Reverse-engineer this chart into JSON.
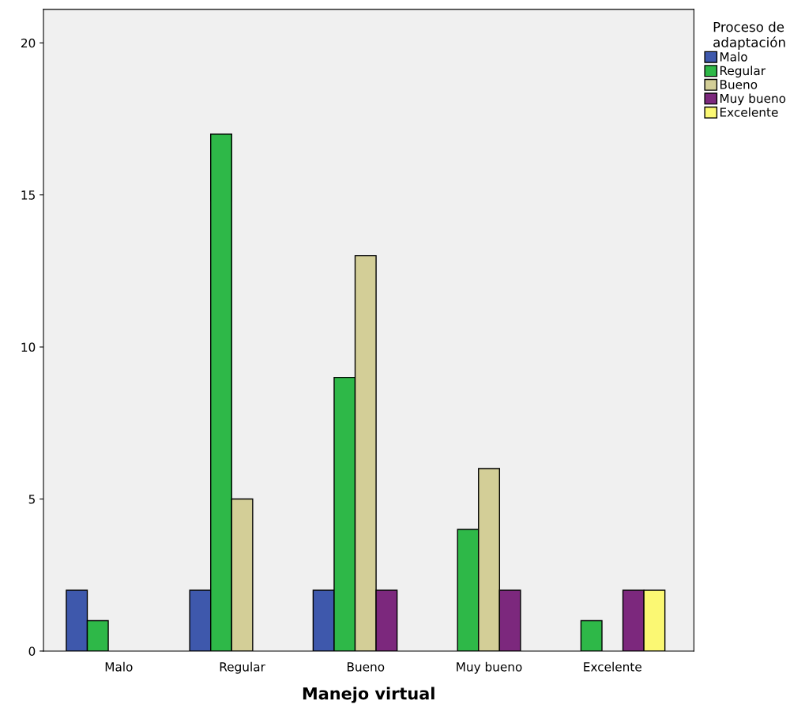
{
  "chart_data": {
    "type": "bar",
    "xlabel": "Manejo virtual",
    "legend_title": "Proceso de\nadaptación",
    "categories": [
      "Malo",
      "Regular",
      "Bueno",
      "Muy bueno",
      "Excelente"
    ],
    "series": [
      {
        "name": "Malo",
        "color": "#3e58ac",
        "values": [
          2,
          2,
          2,
          null,
          null
        ]
      },
      {
        "name": "Regular",
        "color": "#2eb848",
        "values": [
          1,
          17,
          9,
          4,
          1
        ]
      },
      {
        "name": "Bueno",
        "color": "#d3ce97",
        "values": [
          null,
          5,
          13,
          6,
          null
        ]
      },
      {
        "name": "Muy bueno",
        "color": "#7c287d",
        "values": [
          null,
          null,
          2,
          2,
          2
        ]
      },
      {
        "name": "Excelente",
        "color": "#fbf873",
        "values": [
          null,
          null,
          null,
          null,
          2
        ]
      }
    ],
    "ylim": [
      0,
      21.1
    ],
    "yticks": [
      0,
      5,
      10,
      15,
      20
    ],
    "grid": false,
    "legend": "top right"
  }
}
